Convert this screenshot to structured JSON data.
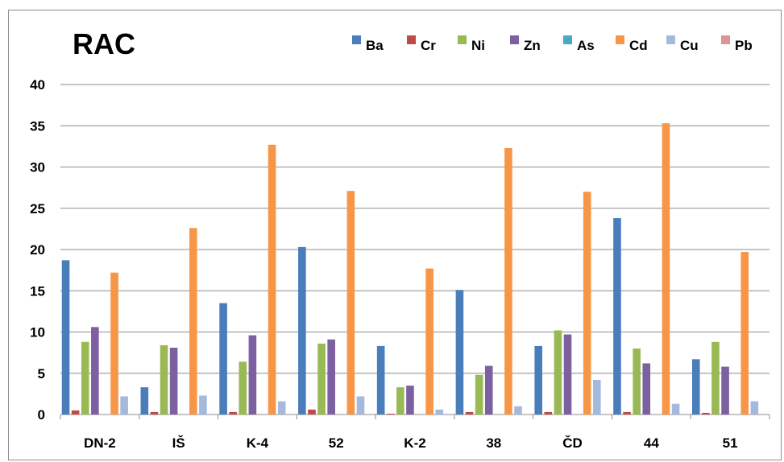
{
  "chart_data": {
    "type": "bar",
    "title": "RAC",
    "xlabel": "",
    "ylabel": "",
    "ylim": [
      0,
      40
    ],
    "yticks": [
      0,
      5,
      10,
      15,
      20,
      25,
      30,
      35,
      40
    ],
    "grid": true,
    "legend_position": "top-right",
    "categories": [
      "DN-2",
      "IŠ",
      "K-4",
      "52",
      "K-2",
      "38",
      "ČD",
      "44",
      "51"
    ],
    "series": [
      {
        "name": "Ba",
        "color": "#4a7ebb",
        "values": [
          18.7,
          3.3,
          13.5,
          20.3,
          8.3,
          15.1,
          8.3,
          23.8,
          6.7
        ]
      },
      {
        "name": "Cr",
        "color": "#be4b48",
        "values": [
          0.5,
          0.3,
          0.3,
          0.6,
          0.1,
          0.3,
          0.3,
          0.3,
          0.2
        ]
      },
      {
        "name": "Ni",
        "color": "#98b954",
        "values": [
          8.8,
          8.4,
          6.4,
          8.6,
          3.3,
          4.8,
          10.2,
          8.0,
          8.8
        ]
      },
      {
        "name": "Zn",
        "color": "#7d60a0",
        "values": [
          10.6,
          8.1,
          9.6,
          9.1,
          3.5,
          5.9,
          9.7,
          6.2,
          5.8
        ]
      },
      {
        "name": "As",
        "color": "#46aac5",
        "values": [
          0,
          0,
          0,
          0,
          0,
          0,
          0,
          0,
          0
        ]
      },
      {
        "name": "Cd",
        "color": "#f79646",
        "values": [
          17.2,
          22.6,
          32.7,
          27.1,
          17.7,
          32.3,
          27.0,
          35.3,
          19.7
        ]
      },
      {
        "name": "Cu",
        "color": "#a5b9dc",
        "values": [
          2.2,
          2.3,
          1.6,
          2.2,
          0.6,
          1.0,
          4.2,
          1.3,
          1.6
        ]
      },
      {
        "name": "Pb",
        "color": "#d99694",
        "values": [
          0,
          0,
          0,
          0,
          0,
          0,
          0,
          0,
          0
        ]
      }
    ]
  }
}
